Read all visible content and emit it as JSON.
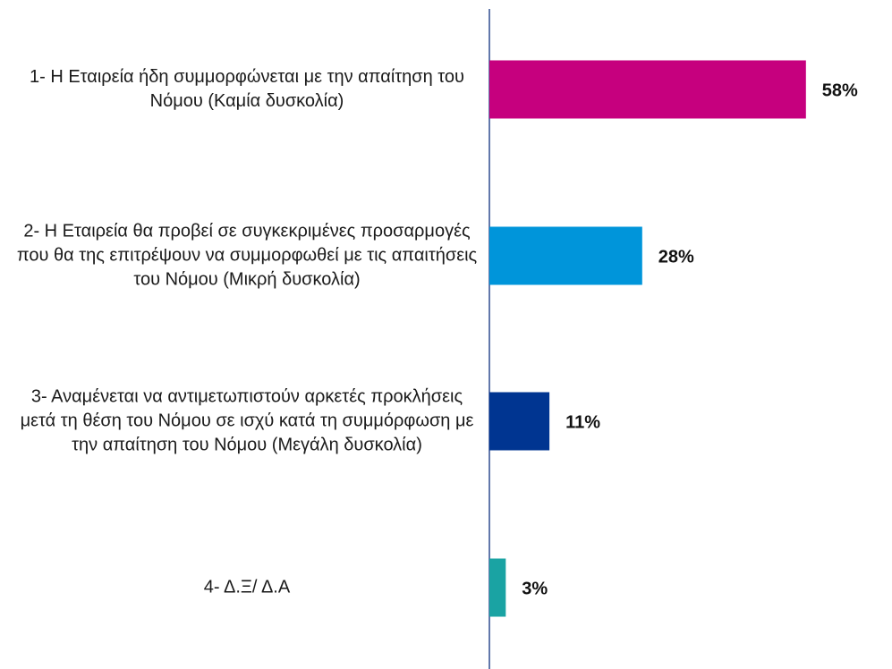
{
  "chart_data": {
    "type": "bar",
    "orientation": "horizontal",
    "categories": [
      "1- Η Εταιρεία ήδη συμμορφώνεται με την απαίτηση του Νόμου (Καμία δυσκολία)",
      "2- Η Εταιρεία θα προβεί σε συγκεκριμένες προσαρμογές που θα της επιτρέψουν να συμμορφωθεί με τις απαιτήσεις του Νόμου (Μικρή δυσκολία)",
      "3- Αναμένεται να αντιμετωπιστούν αρκετές προκλήσεις μετά τη θέση του Νόμου σε ισχύ κατά τη συμμόρφωση με την απαίτηση του Νόμου (Μεγάλη δυσκολία)",
      "4- Δ.Ξ/ Δ.Α"
    ],
    "values": [
      58,
      28,
      11,
      3
    ],
    "value_labels": [
      "58%",
      "28%",
      "11%",
      "3%"
    ],
    "colors": [
      "#c6007e",
      "#0095da",
      "#003591",
      "#1aa3a3"
    ],
    "xlim": [
      0,
      60
    ]
  }
}
